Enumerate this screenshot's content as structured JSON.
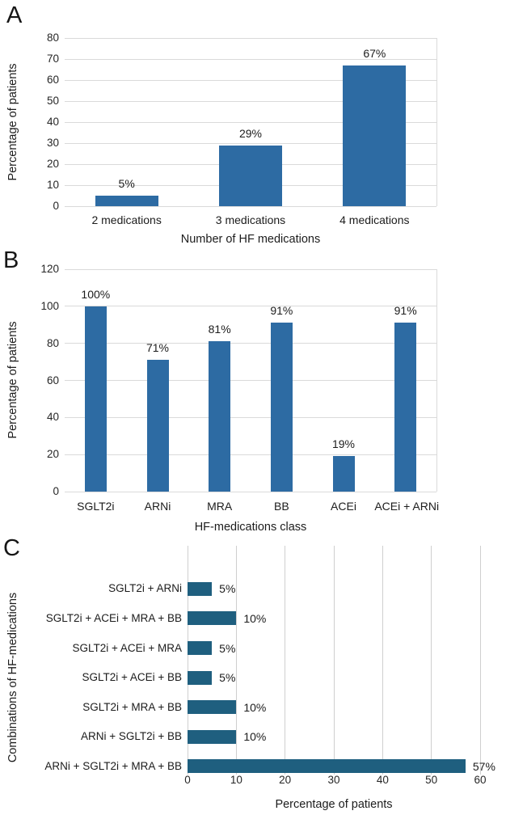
{
  "figure": {
    "background": "#ffffff",
    "text_color": "#1c1c1c",
    "panel_labels": [
      "A",
      "B",
      "C"
    ]
  },
  "chart_data": [
    {
      "panel": "A",
      "type": "bar",
      "categories": [
        "2 medications",
        "3 medications",
        "4 medications"
      ],
      "values": [
        5,
        29,
        67
      ],
      "value_labels": [
        "5%",
        "29%",
        "67%"
      ],
      "xlabel": "Number of HF medications",
      "ylabel": "Percentage of patients",
      "ylim": [
        0,
        80
      ],
      "yticks": [
        0,
        10,
        20,
        30,
        40,
        50,
        60,
        70,
        80
      ],
      "grid": "horizontal",
      "legend": "none",
      "bar_color": "#2d6ba3",
      "grid_color": "#dadada"
    },
    {
      "panel": "B",
      "type": "bar",
      "categories": [
        "SGLT2i",
        "ARNi",
        "MRA",
        "BB",
        "ACEi",
        "ACEi + ARNi"
      ],
      "values": [
        100,
        71,
        81,
        91,
        19,
        91
      ],
      "value_labels": [
        "100%",
        "71%",
        "81%",
        "91%",
        "19%",
        "91%"
      ],
      "xlabel": "HF-medications class",
      "ylabel": "Percentage of patients",
      "ylim": [
        0,
        120
      ],
      "yticks": [
        0,
        20,
        40,
        60,
        80,
        100,
        120
      ],
      "grid": "horizontal",
      "legend": "none",
      "bar_color": "#2d6ba3",
      "grid_color": "#dadada"
    },
    {
      "panel": "C",
      "type": "bar-horizontal",
      "categories": [
        "SGLT2i + ARNi",
        "SGLT2i + ACEi + MRA + BB",
        "SGLT2i + ACEi + MRA",
        "SGLT2i + ACEi + BB",
        "SGLT2i + MRA + BB",
        "ARNi + SGLT2i + BB",
        "ARNi + SGLT2i + MRA + BB"
      ],
      "values": [
        5,
        10,
        5,
        5,
        10,
        10,
        57
      ],
      "value_labels": [
        "5%",
        "10%",
        "5%",
        "5%",
        "10%",
        "10%",
        "57%"
      ],
      "xlabel": "Percentage of patients",
      "ylabel": "Combinations of HF-medications",
      "xlim": [
        0,
        60
      ],
      "xticks": [
        0,
        10,
        20,
        30,
        40,
        50,
        60
      ],
      "grid": "vertical",
      "legend": "none",
      "bar_color": "#1f5f7f",
      "grid_color": "#cfcfcf"
    }
  ]
}
